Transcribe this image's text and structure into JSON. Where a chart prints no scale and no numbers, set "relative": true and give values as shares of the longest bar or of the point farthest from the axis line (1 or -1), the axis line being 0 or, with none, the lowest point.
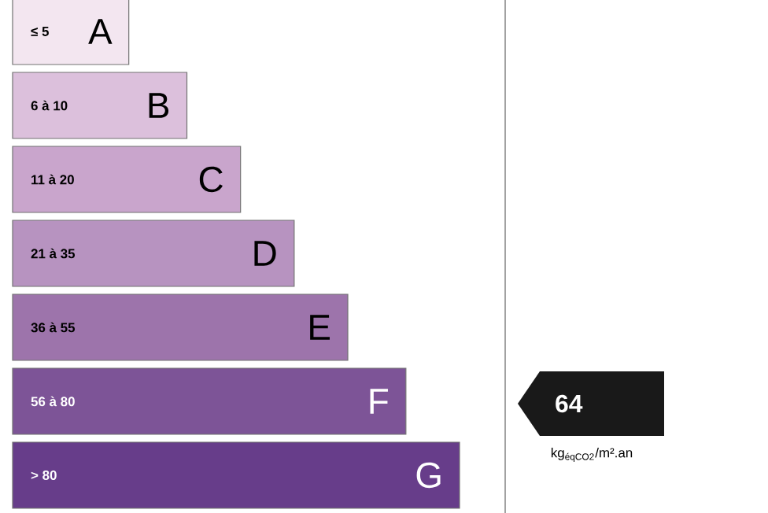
{
  "chart_data": {
    "type": "bar",
    "orientation": "horizontal",
    "relative": true,
    "categories": [
      "≤ 5",
      "6 à 10",
      "11 à 20",
      "21 à 35",
      "36 à 55",
      "56 à 80",
      "> 80"
    ],
    "values": [
      0.26,
      0.39,
      0.51,
      0.63,
      0.75,
      0.88,
      1
    ],
    "colors": [
      "#f3e6f0",
      "#dcc0dc",
      "#c9a5cc",
      "#b793c0",
      "#9d74ab",
      "#7d5497",
      "#673d8a"
    ],
    "annotations": [
      {
        "text": "A",
        "y": "≤ 5"
      },
      {
        "text": "B",
        "y": "6 à 10"
      },
      {
        "text": "C",
        "y": "11 à 20"
      },
      {
        "text": "D",
        "y": "21 à 35"
      },
      {
        "text": "E",
        "y": "36 à 55"
      },
      {
        "text": "F",
        "y": "56 à 80"
      },
      {
        "text": "G",
        "y": "> 80"
      },
      "64",
      "kg$_{éqCO2}$/m².an"
    ]
  }
}
